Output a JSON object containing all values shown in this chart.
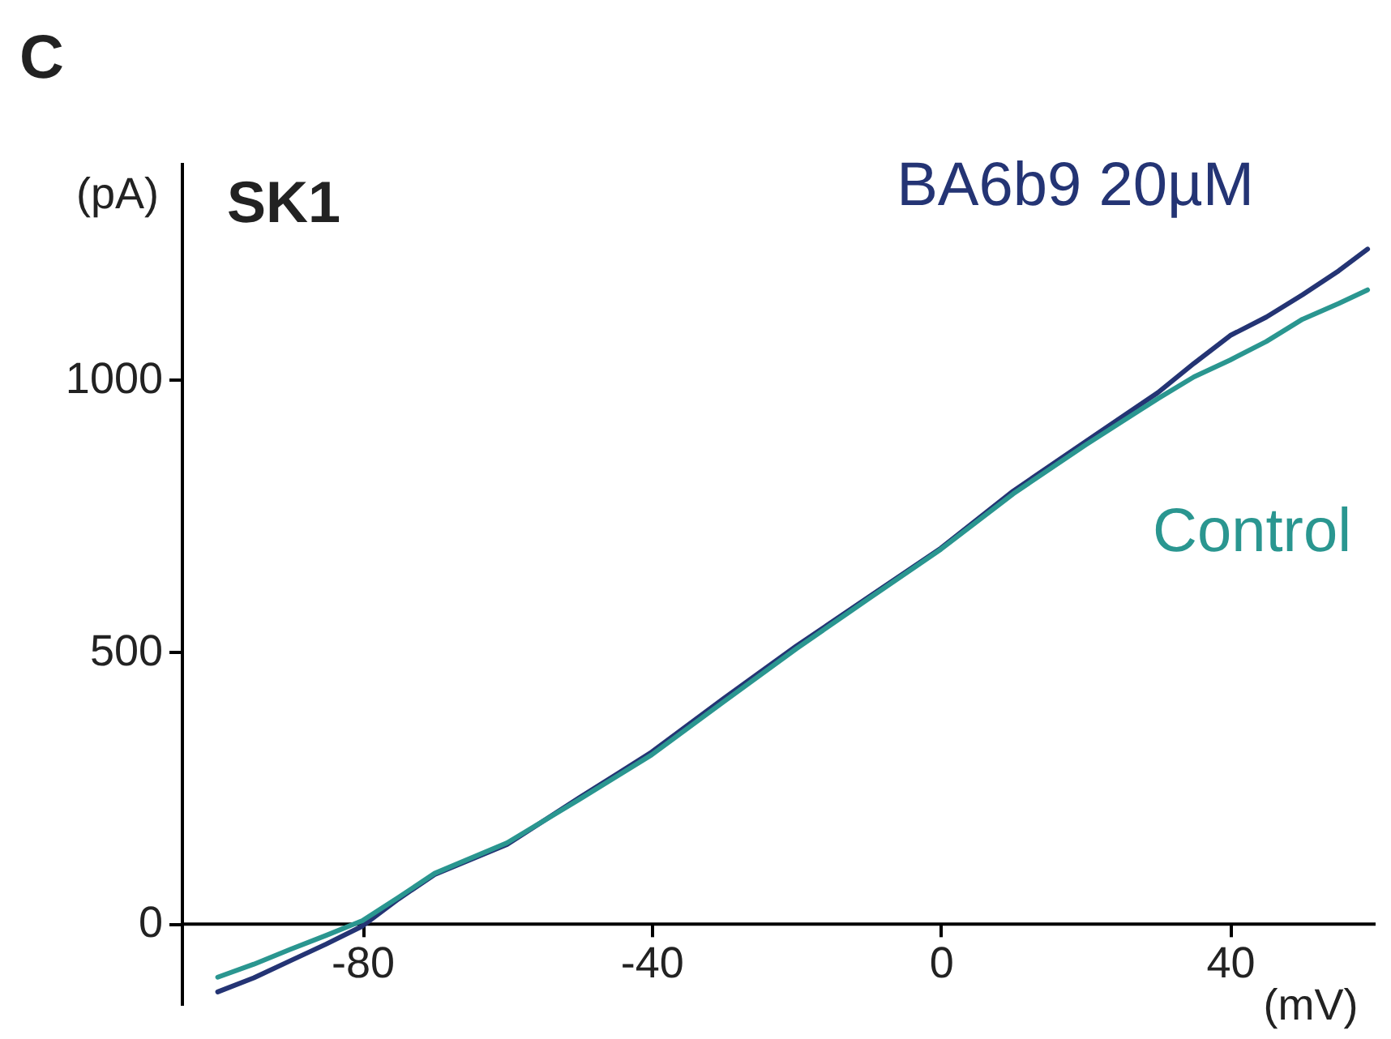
{
  "chart_data": {
    "type": "line",
    "title": "SK1",
    "xlabel": "(mV)",
    "ylabel": "(pA)",
    "annotations": [
      "C"
    ],
    "xlim": [
      -105,
      60
    ],
    "xticks": [
      -80,
      -40,
      0,
      40
    ],
    "ylim": [
      -150,
      1400
    ],
    "yticks": [
      0,
      500,
      1000
    ],
    "grid": false,
    "legend": false,
    "marker": "none",
    "line_style": "solid",
    "series": [
      {
        "name": "BA6b9 20µM",
        "color": "#243474",
        "x": [
          -100,
          -95,
          -90,
          -85,
          -80,
          -75,
          -70,
          -60,
          -50,
          -40,
          -30,
          -20,
          -10,
          0,
          10,
          20,
          30,
          35,
          40,
          45,
          50,
          55,
          59
        ],
        "values": [
          -126,
          -100,
          -69,
          -38,
          -5,
          45,
          90,
          145,
          231,
          315,
          414,
          510,
          600,
          690,
          795,
          886,
          976,
          1030,
          1081,
          1115,
          1156,
          1200,
          1240
        ]
      },
      {
        "name": "Control",
        "color": "#2a9690",
        "x": [
          -100,
          -95,
          -90,
          -85,
          -80,
          -75,
          -70,
          -60,
          -50,
          -40,
          -30,
          -20,
          -10,
          0,
          10,
          20,
          30,
          35,
          40,
          45,
          50,
          55,
          59
        ],
        "values": [
          -99,
          -75,
          -48,
          -22,
          5,
          48,
          92,
          148,
          228,
          310,
          408,
          505,
          597,
          688,
          790,
          880,
          965,
          1005,
          1036,
          1070,
          1111,
          1140,
          1165
        ]
      }
    ]
  }
}
